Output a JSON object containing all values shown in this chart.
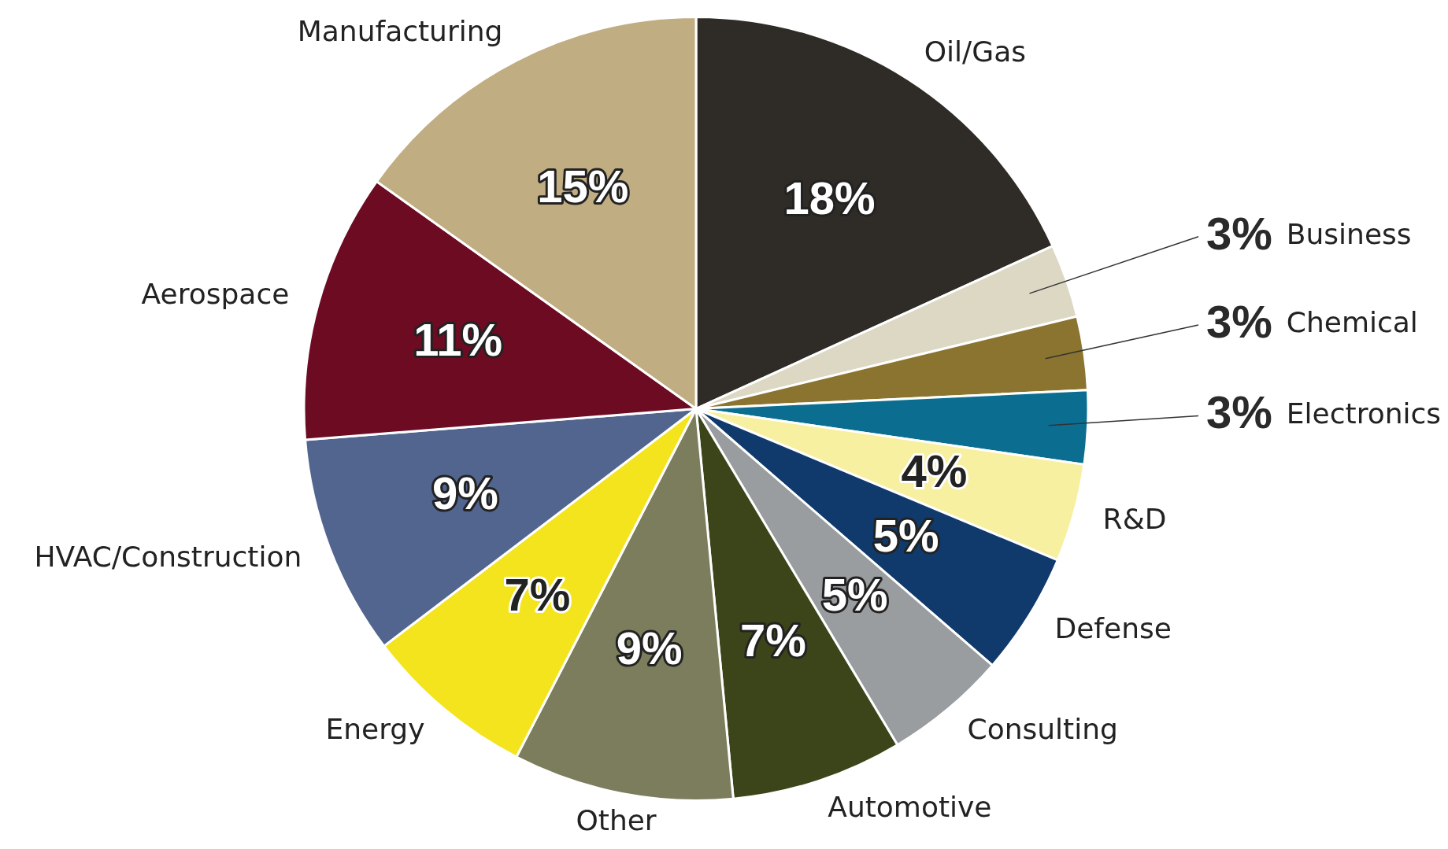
{
  "chart_data": {
    "type": "pie",
    "categories": [
      "Oil/Gas",
      "Business",
      "Chemical",
      "Electronics",
      "R&D",
      "Defense",
      "Consulting",
      "Automotive",
      "Other",
      "Energy",
      "HVAC/Construction",
      "Aerospace",
      "Manufacturing"
    ],
    "values": [
      18,
      3,
      3,
      3,
      4,
      5,
      5,
      7,
      9,
      7,
      9,
      11,
      15
    ],
    "colors": [
      "#2f2b27",
      "#dcd8c4",
      "#8a7430",
      "#0b6e91",
      "#f7f0a0",
      "#0f3a6b",
      "#999da0",
      "#3b4519",
      "#7c7d5c",
      "#f4e41e",
      "#51658f",
      "#6d0b23",
      "#c0ad82"
    ],
    "value_labels": [
      "18%",
      "3%",
      "3%",
      "3%",
      "4%",
      "5%",
      "5%",
      "7%",
      "9%",
      "7%",
      "9%",
      "11%",
      "15%"
    ],
    "legend": false
  }
}
